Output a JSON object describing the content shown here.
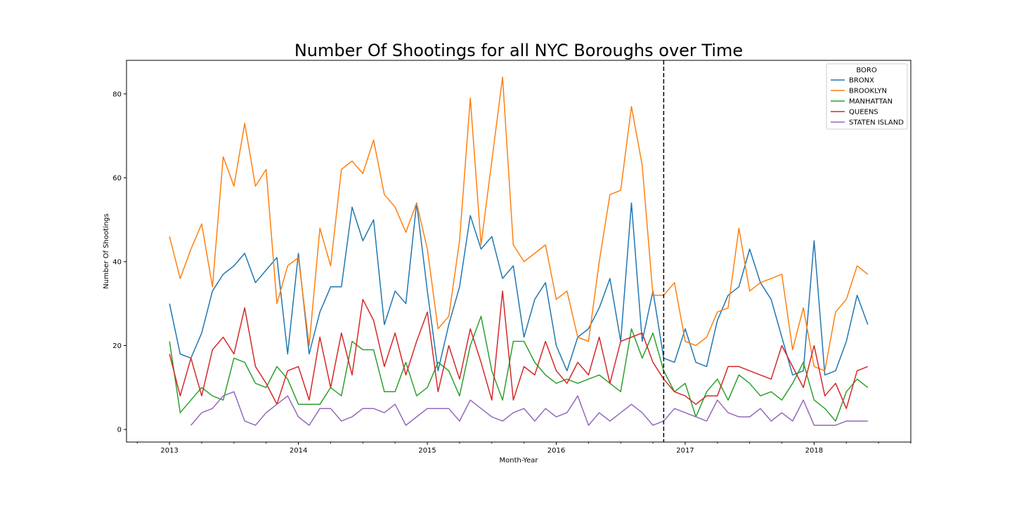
{
  "chart_data": {
    "type": "line",
    "title": "Number Of Shootings for all NYC Boroughs over Time",
    "xlabel": "Month-Year",
    "ylabel": "Number Of Shootings",
    "x_start": "2013-01",
    "x_end": "2018-06",
    "xlim": [
      "2012-09",
      "2018-10"
    ],
    "ylim": [
      -3,
      88
    ],
    "x_ticks": [
      "2013",
      "2014",
      "2015",
      "2016",
      "2017",
      "2018"
    ],
    "y_ticks": [
      0,
      20,
      40,
      60,
      80
    ],
    "grid": false,
    "legend": {
      "title": "BORO",
      "placement": "top-right"
    },
    "vline": {
      "x": "2016-11",
      "style": "dashed",
      "color": "#000000"
    },
    "series": [
      {
        "name": "BRONX",
        "color": "#1f77b4",
        "values": [
          30,
          18,
          17,
          23,
          33,
          37,
          39,
          42,
          35,
          38,
          41,
          18,
          42,
          18,
          28,
          34,
          34,
          53,
          45,
          50,
          25,
          33,
          30,
          54,
          33,
          14,
          25,
          34,
          51,
          43,
          46,
          36,
          39,
          22,
          31,
          35,
          20,
          14,
          22,
          24,
          29,
          36,
          21,
          54,
          21,
          33,
          17,
          16,
          24,
          16,
          15,
          26,
          32,
          34,
          43,
          35,
          31,
          22,
          13,
          14,
          45,
          13,
          14,
          21,
          32,
          25
        ]
      },
      {
        "name": "BROOKLYN",
        "color": "#ff7f0e",
        "values": [
          46,
          36,
          43,
          49,
          34,
          65,
          58,
          73,
          58,
          62,
          30,
          39,
          41,
          20,
          48,
          39,
          62,
          64,
          61,
          69,
          56,
          53,
          47,
          54,
          43,
          24,
          27,
          45,
          79,
          44,
          64,
          84,
          44,
          40,
          42,
          44,
          31,
          33,
          22,
          21,
          40,
          56,
          57,
          77,
          63,
          32,
          32,
          35,
          21,
          20,
          22,
          28,
          29,
          48,
          33,
          35,
          36,
          37,
          19,
          29,
          15,
          14,
          28,
          31,
          39,
          37
        ]
      },
      {
        "name": "MANHATTAN",
        "color": "#2ca02c",
        "values": [
          21,
          4,
          7,
          10,
          8,
          7,
          17,
          16,
          11,
          10,
          15,
          12,
          6,
          6,
          6,
          10,
          8,
          21,
          19,
          19,
          9,
          9,
          16,
          8,
          10,
          16,
          14,
          8,
          20,
          27,
          14,
          7,
          21,
          21,
          16,
          13,
          11,
          12,
          11,
          12,
          13,
          11,
          9,
          24,
          17,
          23,
          14,
          9,
          11,
          3,
          9,
          12,
          7,
          13,
          11,
          8,
          9,
          7,
          11,
          16,
          7,
          5,
          2,
          9,
          12,
          10
        ]
      },
      {
        "name": "QUEENS",
        "color": "#d62728",
        "values": [
          18,
          8,
          17,
          8,
          19,
          22,
          18,
          29,
          15,
          11,
          6,
          14,
          15,
          7,
          22,
          10,
          23,
          13,
          31,
          26,
          15,
          23,
          13,
          21,
          28,
          9,
          20,
          12,
          24,
          16,
          7,
          33,
          7,
          15,
          13,
          21,
          14,
          11,
          16,
          13,
          22,
          11,
          21,
          22,
          23,
          16,
          12,
          9,
          8,
          6,
          8,
          8,
          15,
          15,
          14,
          13,
          12,
          20,
          15,
          10,
          20,
          8,
          11,
          5,
          14,
          15
        ]
      },
      {
        "name": "STATEN ISLAND",
        "color": "#9467bd",
        "values": [
          null,
          null,
          1,
          4,
          5,
          8,
          9,
          2,
          1,
          4,
          6,
          8,
          3,
          1,
          5,
          5,
          2,
          3,
          5,
          5,
          4,
          6,
          1,
          3,
          5,
          5,
          5,
          2,
          7,
          5,
          3,
          2,
          4,
          5,
          2,
          5,
          3,
          4,
          8,
          1,
          4,
          2,
          4,
          6,
          4,
          1,
          2,
          5,
          4,
          3,
          2,
          7,
          4,
          3,
          3,
          5,
          2,
          4,
          2,
          7,
          1,
          1,
          1,
          2,
          2,
          2
        ]
      }
    ]
  }
}
